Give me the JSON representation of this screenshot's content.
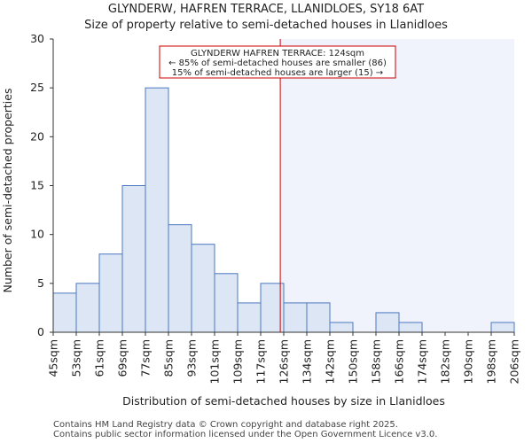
{
  "chart_data": {
    "type": "bar",
    "title": "GLYNDERW, HAFREN TERRACE, LLANIDLOES, SY18 6AT",
    "subtitle": "Size of property relative to semi-detached houses in Llanidloes",
    "xlabel": "Distribution of semi-detached houses by size in Llanidloes",
    "ylabel": "Number of semi-detached properties",
    "ylim": [
      0,
      30
    ],
    "yticks": [
      0,
      5,
      10,
      15,
      20,
      25,
      30
    ],
    "bin_edges": [
      "45sqm",
      "53sqm",
      "61sqm",
      "69sqm",
      "77sqm",
      "85sqm",
      "93sqm",
      "101sqm",
      "109sqm",
      "117sqm",
      "126sqm",
      "134sqm",
      "142sqm",
      "150sqm",
      "158sqm",
      "166sqm",
      "174sqm",
      "182sqm",
      "190sqm",
      "198sqm",
      "206sqm"
    ],
    "values": [
      4,
      5,
      8,
      15,
      25,
      11,
      9,
      6,
      3,
      5,
      3,
      3,
      1,
      0,
      2,
      1,
      0,
      0,
      0,
      1
    ],
    "marker_value_sqm": 124,
    "marker_bin_fraction": 9.85,
    "annotation": {
      "line1": "GLYNDERW HAFREN TERRACE: 124sqm",
      "line2": "← 85% of semi-detached houses are smaller (86)",
      "line3": "15% of semi-detached houses are larger (15) →"
    },
    "colors": {
      "bar_fill": "#dce6f5",
      "bar_edge": "#4a78c0",
      "marker": "#cc0000",
      "highlight": "#f0f3fb"
    }
  },
  "footer": {
    "line1": "Contains HM Land Registry data © Crown copyright and database right 2025.",
    "line2": "Contains public sector information licensed under the Open Government Licence v3.0."
  }
}
